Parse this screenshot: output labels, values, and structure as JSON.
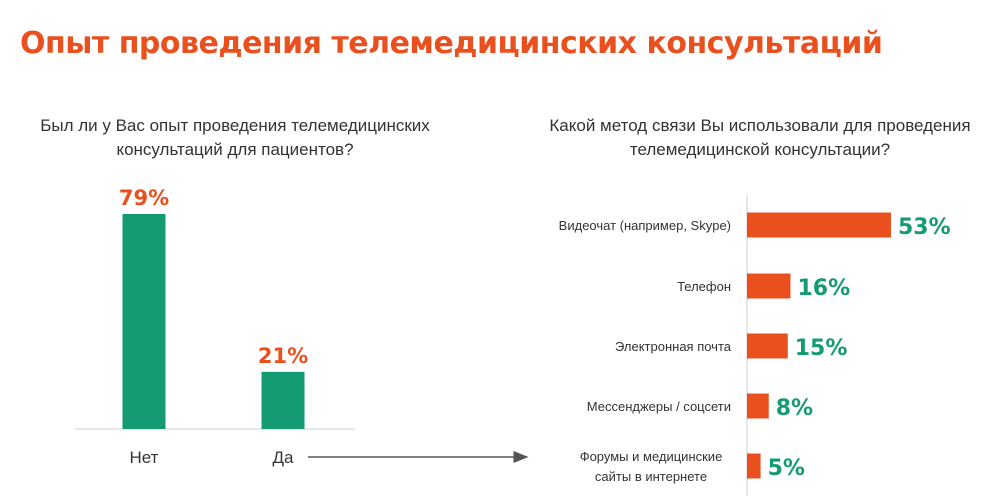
{
  "title": "Опыт проведения телемедицинских консультаций",
  "colors": {
    "accent": "#e9501d",
    "green": "#159b74",
    "text": "#333333"
  },
  "chart_data": [
    {
      "type": "bar",
      "title": "Был ли у Вас опыт проведения телемедицинских консультаций для пациентов?",
      "categories": [
        "Нет",
        "Да"
      ],
      "values": [
        79,
        21
      ],
      "value_labels": [
        "79%",
        "21%"
      ],
      "unit": "%",
      "orientation": "vertical"
    },
    {
      "type": "bar",
      "title": "Какой метод связи Вы использовали для проведения телемедицинской консультации?",
      "categories": [
        "Видеочат (например, Skype)",
        "Телефон",
        "Электронная почта",
        "Мессенджеры / соцсети",
        "Форумы и медицинские сайты в интернете"
      ],
      "values": [
        53,
        16,
        15,
        8,
        5
      ],
      "value_labels": [
        "53%",
        "16%",
        "15%",
        "8%",
        "5%"
      ],
      "unit": "%",
      "orientation": "horizontal"
    }
  ]
}
